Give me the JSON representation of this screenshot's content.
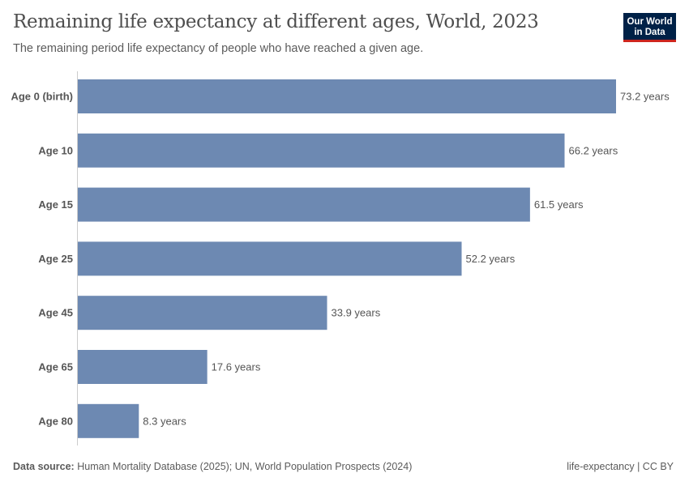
{
  "header": {
    "title": "Remaining life expectancy at different ages, World, 2023",
    "subtitle": "The remaining period life expectancy of people who have reached a given age.",
    "logo": "Our World in Data"
  },
  "footer": {
    "source_label": "Data source:",
    "source": "Human Mortality Database (2025); UN, World Population Prospects (2024)",
    "right": "life-expectancy | CC BY"
  },
  "chart_data": {
    "type": "bar",
    "orientation": "horizontal",
    "categories": [
      "Age 0 (birth)",
      "Age 10",
      "Age 15",
      "Age 25",
      "Age 45",
      "Age 65",
      "Age 80"
    ],
    "values": [
      73.2,
      66.2,
      61.5,
      52.2,
      33.9,
      17.6,
      8.3
    ],
    "unit": "years",
    "data_labels": [
      "73.2 years",
      "66.2 years",
      "61.5 years",
      "52.2 years",
      "33.9 years",
      "17.6 years",
      "8.3 years"
    ],
    "bar_color": "#6d89b2",
    "xlim": [
      0,
      73.2
    ],
    "grid": false
  }
}
